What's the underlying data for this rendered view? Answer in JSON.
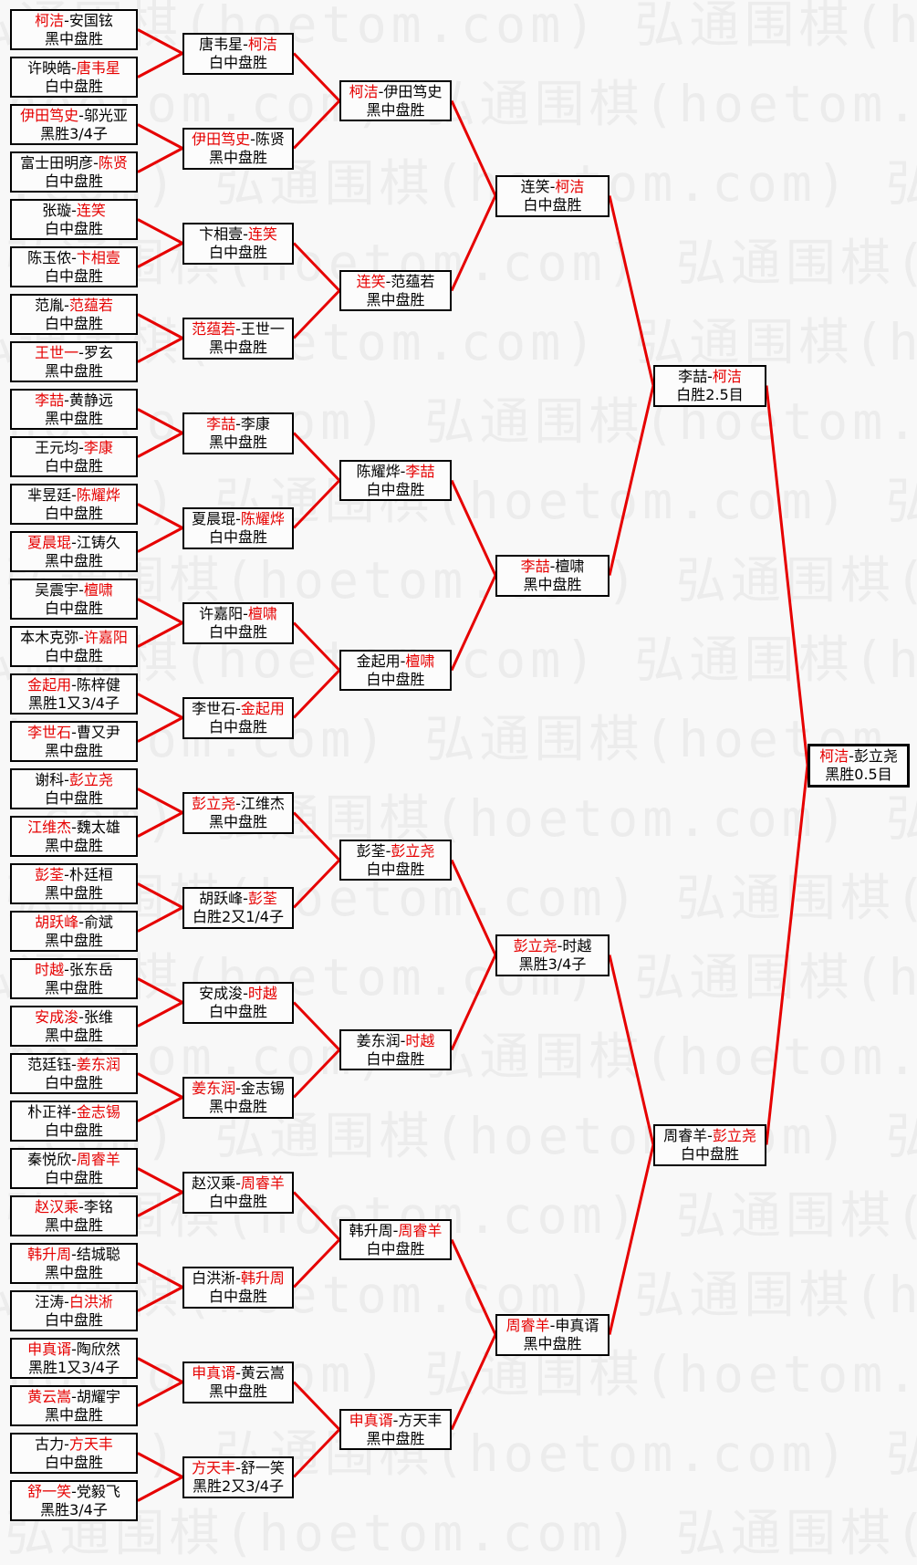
{
  "page": {
    "background": "#f8f8f8"
  },
  "watermark": {
    "text": "弘通围棋(hoetom.com)",
    "color": "#ececec"
  },
  "colors": {
    "line": "#e60000",
    "winner_text": "#e60000",
    "loser_text": "#000000",
    "box_border": "#000000",
    "box_background": "#fcfcfc"
  },
  "bracket": {
    "rounds": [
      {
        "name": "round-1",
        "matches": [
          {
            "p1": "柯洁",
            "p2": "安国铉",
            "winner": 1,
            "result": "黑中盘胜"
          },
          {
            "p1": "许映皓",
            "p2": "唐韦星",
            "winner": 2,
            "result": "白中盘胜"
          },
          {
            "p1": "伊田笃史",
            "p2": "邬光亚",
            "winner": 1,
            "result": "黑胜3/4子"
          },
          {
            "p1": "富士田明彦",
            "p2": "陈贤",
            "winner": 2,
            "result": "白中盘胜"
          },
          {
            "p1": "张璇",
            "p2": "连笑",
            "winner": 2,
            "result": "白中盘胜"
          },
          {
            "p1": "陈玉侬",
            "p2": "卞相壹",
            "winner": 2,
            "result": "白中盘胜"
          },
          {
            "p1": "范胤",
            "p2": "范蕴若",
            "winner": 2,
            "result": "白中盘胜"
          },
          {
            "p1": "王世一",
            "p2": "罗玄",
            "winner": 1,
            "result": "黑中盘胜"
          },
          {
            "p1": "李喆",
            "p2": "黄静远",
            "winner": 1,
            "result": "黑中盘胜"
          },
          {
            "p1": "王元均",
            "p2": "李康",
            "winner": 2,
            "result": "白中盘胜"
          },
          {
            "p1": "芈昱廷",
            "p2": "陈耀烨",
            "winner": 2,
            "result": "白中盘胜"
          },
          {
            "p1": "夏晨琨",
            "p2": "江铸久",
            "winner": 1,
            "result": "黑中盘胜"
          },
          {
            "p1": "吴震宇",
            "p2": "檀啸",
            "winner": 2,
            "result": "白中盘胜"
          },
          {
            "p1": "本木克弥",
            "p2": "许嘉阳",
            "winner": 2,
            "result": "白中盘胜"
          },
          {
            "p1": "金起用",
            "p2": "陈梓健",
            "winner": 1,
            "result": "黑胜1又3/4子"
          },
          {
            "p1": "李世石",
            "p2": "曹又尹",
            "winner": 1,
            "result": "黑中盘胜"
          },
          {
            "p1": "谢科",
            "p2": "彭立尧",
            "winner": 2,
            "result": "白中盘胜"
          },
          {
            "p1": "江维杰",
            "p2": "魏太雄",
            "winner": 1,
            "result": "黑中盘胜"
          },
          {
            "p1": "彭荃",
            "p2": "朴廷桓",
            "winner": 1,
            "result": "黑中盘胜"
          },
          {
            "p1": "胡跃峰",
            "p2": "俞斌",
            "winner": 1,
            "result": "黑中盘胜"
          },
          {
            "p1": "时越",
            "p2": "张东岳",
            "winner": 1,
            "result": "黑中盘胜"
          },
          {
            "p1": "安成浚",
            "p2": "张维",
            "winner": 1,
            "result": "黑中盘胜"
          },
          {
            "p1": "范廷钰",
            "p2": "姜东润",
            "winner": 2,
            "result": "白中盘胜"
          },
          {
            "p1": "朴正祥",
            "p2": "金志锡",
            "winner": 2,
            "result": "白中盘胜"
          },
          {
            "p1": "秦悦欣",
            "p2": "周睿羊",
            "winner": 2,
            "result": "白中盘胜"
          },
          {
            "p1": "赵汉乘",
            "p2": "李铭",
            "winner": 1,
            "result": "黑中盘胜"
          },
          {
            "p1": "韩升周",
            "p2": "结城聪",
            "winner": 1,
            "result": "黑中盘胜"
          },
          {
            "p1": "汪涛",
            "p2": "白洪淅",
            "winner": 2,
            "result": "白中盘胜"
          },
          {
            "p1": "申真谞",
            "p2": "陶欣然",
            "winner": 1,
            "result": "黑胜1又3/4子"
          },
          {
            "p1": "黄云嵩",
            "p2": "胡耀宇",
            "winner": 1,
            "result": "黑中盘胜"
          },
          {
            "p1": "古力",
            "p2": "方天丰",
            "winner": 2,
            "result": "白中盘胜"
          },
          {
            "p1": "舒一笑",
            "p2": "党毅飞",
            "winner": 1,
            "result": "黑胜3/4子"
          }
        ]
      },
      {
        "name": "round-2",
        "matches": [
          {
            "p1": "唐韦星",
            "p2": "柯洁",
            "winner": 2,
            "result": "白中盘胜"
          },
          {
            "p1": "伊田笃史",
            "p2": "陈贤",
            "winner": 1,
            "result": "黑中盘胜"
          },
          {
            "p1": "卞相壹",
            "p2": "连笑",
            "winner": 2,
            "result": "白中盘胜"
          },
          {
            "p1": "范蕴若",
            "p2": "王世一",
            "winner": 1,
            "result": "黑中盘胜"
          },
          {
            "p1": "李喆",
            "p2": "李康",
            "winner": 1,
            "result": "黑中盘胜"
          },
          {
            "p1": "夏晨琨",
            "p2": "陈耀烨",
            "winner": 2,
            "result": "白中盘胜"
          },
          {
            "p1": "许嘉阳",
            "p2": "檀啸",
            "winner": 2,
            "result": "白中盘胜"
          },
          {
            "p1": "李世石",
            "p2": "金起用",
            "winner": 2,
            "result": "白中盘胜"
          },
          {
            "p1": "彭立尧",
            "p2": "江维杰",
            "winner": 1,
            "result": "黑中盘胜"
          },
          {
            "p1": "胡跃峰",
            "p2": "彭荃",
            "winner": 2,
            "result": "白胜2又1/4子"
          },
          {
            "p1": "安成浚",
            "p2": "时越",
            "winner": 2,
            "result": "白中盘胜"
          },
          {
            "p1": "姜东润",
            "p2": "金志锡",
            "winner": 1,
            "result": "黑中盘胜"
          },
          {
            "p1": "赵汉乘",
            "p2": "周睿羊",
            "winner": 2,
            "result": "白中盘胜"
          },
          {
            "p1": "白洪淅",
            "p2": "韩升周",
            "winner": 2,
            "result": "白中盘胜"
          },
          {
            "p1": "申真谞",
            "p2": "黄云嵩",
            "winner": 1,
            "result": "黑中盘胜"
          },
          {
            "p1": "方天丰",
            "p2": "舒一笑",
            "winner": 1,
            "result": "黑胜2又3/4子"
          }
        ]
      },
      {
        "name": "round-3",
        "matches": [
          {
            "p1": "柯洁",
            "p2": "伊田笃史",
            "winner": 1,
            "result": "黑中盘胜"
          },
          {
            "p1": "连笑",
            "p2": "范蕴若",
            "winner": 1,
            "result": "黑中盘胜"
          },
          {
            "p1": "陈耀烨",
            "p2": "李喆",
            "winner": 2,
            "result": "白中盘胜"
          },
          {
            "p1": "金起用",
            "p2": "檀啸",
            "winner": 2,
            "result": "白中盘胜"
          },
          {
            "p1": "彭荃",
            "p2": "彭立尧",
            "winner": 2,
            "result": "白中盘胜"
          },
          {
            "p1": "姜东润",
            "p2": "时越",
            "winner": 2,
            "result": "白中盘胜"
          },
          {
            "p1": "韩升周",
            "p2": "周睿羊",
            "winner": 2,
            "result": "白中盘胜"
          },
          {
            "p1": "申真谞",
            "p2": "方天丰",
            "winner": 1,
            "result": "黑中盘胜"
          }
        ]
      },
      {
        "name": "quarterfinals",
        "matches": [
          {
            "p1": "连笑",
            "p2": "柯洁",
            "winner": 2,
            "result": "白中盘胜"
          },
          {
            "p1": "李喆",
            "p2": "檀啸",
            "winner": 1,
            "result": "黑中盘胜"
          },
          {
            "p1": "彭立尧",
            "p2": "时越",
            "winner": 1,
            "result": "黑胜3/4子"
          },
          {
            "p1": "周睿羊",
            "p2": "申真谞",
            "winner": 1,
            "result": "黑中盘胜"
          }
        ]
      },
      {
        "name": "semifinals",
        "matches": [
          {
            "p1": "李喆",
            "p2": "柯洁",
            "winner": 2,
            "result": "白胜2.5目"
          },
          {
            "p1": "周睿羊",
            "p2": "彭立尧",
            "winner": 2,
            "result": "白中盘胜"
          }
        ]
      },
      {
        "name": "final",
        "matches": [
          {
            "p1": "柯洁",
            "p2": "彭立尧",
            "winner": 1,
            "result": "黑胜0.5目"
          }
        ]
      }
    ]
  }
}
